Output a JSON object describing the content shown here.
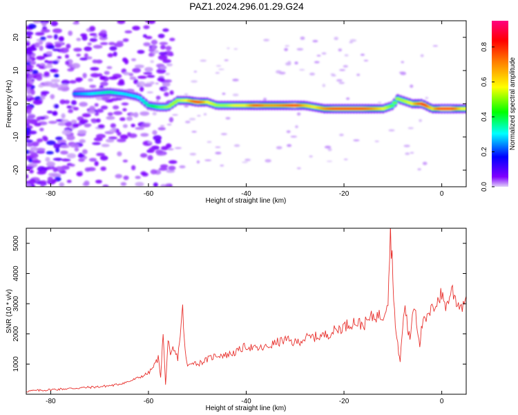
{
  "title": "PAZ1.2024.296.01.29.G24",
  "chart_data": [
    {
      "type": "heatmap",
      "xlabel": "Height of straight line (km)",
      "ylabel": "Frequency (Hz)",
      "xlim": [
        -85,
        5
      ],
      "ylim": [
        -25,
        25
      ],
      "xticks": [
        "-80",
        "-60",
        "-40",
        "-20",
        "0"
      ],
      "yticks": [
        "20",
        "10",
        "0",
        "-10",
        "-20"
      ],
      "xtick_values": [
        -80,
        -60,
        -40,
        -20,
        0
      ],
      "ytick_values": [
        20,
        10,
        0,
        -10,
        -20
      ],
      "colorbar": {
        "label": "Normalized spectral amplitude",
        "ticks": [
          "0.0",
          "0.2",
          "0.4",
          "0.6",
          "0.8"
        ],
        "tick_values": [
          0.0,
          0.2,
          0.4,
          0.6,
          0.8
        ],
        "range": [
          0,
          0.95
        ],
        "colormap": [
          "#e0d0f8",
          "#8000ff",
          "#0000ff",
          "#00ffff",
          "#00ff00",
          "#ffff00",
          "#ff8000",
          "#ff0000",
          "#ff0080"
        ]
      },
      "ridge": {
        "x": [
          -75,
          -72,
          -68,
          -65,
          -62,
          -60,
          -58,
          -56,
          -54,
          -52,
          -50,
          -48,
          -46,
          -44,
          -42,
          -40,
          -38,
          -36,
          -34,
          -32,
          -30,
          -28,
          -26,
          -24,
          -22,
          -20,
          -18,
          -16,
          -14,
          -12,
          -10,
          -9,
          -8,
          -6,
          -4,
          -2,
          0,
          2,
          4
        ],
        "freq": [
          3,
          3,
          3.5,
          3,
          2,
          -0.5,
          -1,
          -1,
          1,
          1,
          0.5,
          0.5,
          -0.5,
          -0.5,
          -0.5,
          -0.5,
          -0.5,
          -0.5,
          -0.5,
          -0.5,
          -0.5,
          -0.5,
          -1,
          -1.5,
          -1.5,
          -1.5,
          -1.5,
          -1.5,
          -1.5,
          -1.5,
          -0.5,
          1.5,
          1,
          0,
          0,
          -1.5,
          -1.5,
          -1.5,
          -1.5
        ],
        "amp": [
          0.3,
          0.35,
          0.4,
          0.35,
          0.35,
          0.4,
          0.5,
          0.55,
          0.55,
          0.6,
          0.85,
          0.6,
          0.55,
          0.55,
          0.6,
          0.6,
          0.8,
          0.7,
          0.7,
          0.75,
          0.85,
          0.65,
          0.6,
          0.7,
          0.8,
          0.8,
          0.8,
          0.8,
          0.7,
          0.6,
          0.5,
          0.55,
          0.55,
          0.6,
          0.85,
          0.6,
          0.85,
          0.85,
          0.6
        ]
      }
    },
    {
      "type": "line",
      "xlabel": "Height of straight line (km)",
      "ylabel": "SNR (10 * v/v)",
      "xlim": [
        -85,
        5
      ],
      "ylim": [
        0,
        5500
      ],
      "xticks": [
        "-80",
        "-60",
        "-40",
        "-20",
        "0"
      ],
      "yticks": [
        "1000",
        "2000",
        "3000",
        "4000",
        "5000"
      ],
      "xtick_values": [
        -80,
        -60,
        -40,
        -20,
        0
      ],
      "ytick_values": [
        1000,
        2000,
        3000,
        4000,
        5000
      ],
      "color": "#e8302c",
      "series": [
        {
          "x": [
            -85,
            -80,
            -75,
            -70,
            -67,
            -64,
            -62,
            -60,
            -59,
            -58,
            -57.5,
            -57,
            -56.5,
            -56,
            -55.5,
            -55,
            -54,
            -53.5,
            -53,
            -52.5,
            -52,
            -51,
            -50,
            -48,
            -46,
            -44,
            -42,
            -40,
            -38,
            -36,
            -34,
            -32,
            -30,
            -28,
            -26,
            -24,
            -22,
            -20,
            -18,
            -16,
            -14,
            -12,
            -11,
            -10.5,
            -10,
            -9.5,
            -9,
            -8.5,
            -8,
            -7.5,
            -7,
            -6.5,
            -6,
            -5.5,
            -5,
            -4.5,
            -4,
            -3,
            -2,
            -1,
            0,
            1,
            2,
            3,
            4,
            5
          ],
          "y": [
            100,
            150,
            200,
            250,
            300,
            420,
            550,
            700,
            900,
            1200,
            600,
            2000,
            300,
            1800,
            1200,
            1500,
            1200,
            2000,
            2800,
            1400,
            900,
            1100,
            1000,
            1150,
            1300,
            1300,
            1400,
            1600,
            1500,
            1550,
            1700,
            1800,
            1700,
            1850,
            1900,
            1950,
            2100,
            2250,
            2400,
            2300,
            2600,
            2600,
            3200,
            5400,
            4000,
            2200,
            1600,
            1100,
            2200,
            3000,
            2200,
            1800,
            2700,
            3000,
            2200,
            1700,
            2300,
            2500,
            2800,
            3100,
            3300,
            2900,
            3500,
            3100,
            2900,
            3250
          ]
        }
      ]
    }
  ]
}
